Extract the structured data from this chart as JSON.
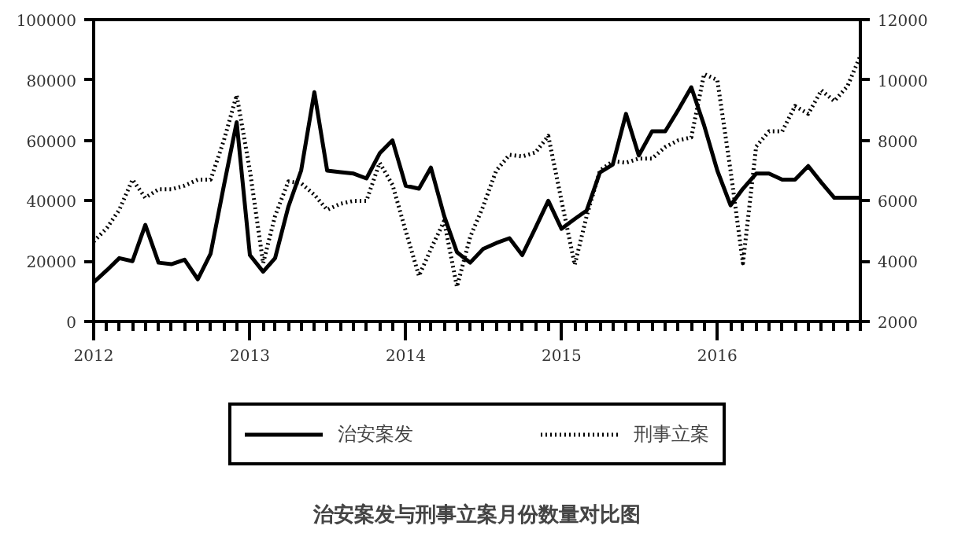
{
  "chart_data": {
    "type": "line",
    "title": "治安案发与刑事立案月份数量对比图",
    "x": [
      "2012-01",
      "2012-02",
      "2012-03",
      "2012-04",
      "2012-05",
      "2012-06",
      "2012-07",
      "2012-08",
      "2012-09",
      "2012-10",
      "2012-11",
      "2012-12",
      "2013-01",
      "2013-02",
      "2013-03",
      "2013-04",
      "2013-05",
      "2013-06",
      "2013-07",
      "2013-08",
      "2013-09",
      "2013-10",
      "2013-11",
      "2013-12",
      "2014-01",
      "2014-02",
      "2014-03",
      "2014-04",
      "2014-05",
      "2014-06",
      "2014-07",
      "2014-08",
      "2014-09",
      "2014-10",
      "2014-11",
      "2014-12",
      "2015-01",
      "2015-02",
      "2015-03",
      "2015-04",
      "2015-05",
      "2015-06",
      "2015-07",
      "2015-08",
      "2015-09",
      "2015-10",
      "2015-11",
      "2015-12",
      "2016-01",
      "2016-02",
      "2016-03",
      "2016-04",
      "2016-05",
      "2016-06",
      "2016-07",
      "2016-08",
      "2016-09",
      "2016-10",
      "2016-11",
      "2016-12"
    ],
    "series": [
      {
        "name": "治安案发",
        "color": "#000000",
        "line_style": "solid",
        "values": [
          13000,
          17000,
          21000,
          20000,
          32000,
          19500,
          19000,
          20500,
          14000,
          22500,
          45000,
          66000,
          22000,
          16500,
          21000,
          38000,
          50000,
          76000,
          50000,
          49500,
          49000,
          47400,
          55700,
          60000,
          45000,
          44000,
          51000,
          35000,
          23000,
          19500,
          24000,
          26000,
          27600,
          22000,
          31000,
          40000,
          30700,
          34000,
          36800,
          49400,
          52000,
          68800,
          55000,
          63000,
          63000,
          70000,
          77600,
          65000,
          50000,
          38500,
          44000,
          49000,
          49000,
          47000,
          47000,
          51500,
          46000,
          41000,
          41000,
          41000
        ]
      },
      {
        "name": "刑事立案",
        "color": "#000000",
        "line_style": "dotted",
        "axis": "y2",
        "values": [
          4650,
          5100,
          5700,
          6700,
          6100,
          6380,
          6380,
          6500,
          6700,
          6700,
          8000,
          9500,
          7000,
          3930,
          5500,
          6640,
          6580,
          6200,
          5700,
          5900,
          6000,
          6000,
          7260,
          6530,
          5000,
          3510,
          4400,
          5330,
          3150,
          4800,
          5800,
          7000,
          7520,
          7470,
          7600,
          8150,
          6000,
          3880,
          5500,
          7000,
          7310,
          7260,
          7400,
          7400,
          7780,
          8000,
          8100,
          10200,
          10000,
          7000,
          3930,
          7800,
          8300,
          8300,
          9140,
          8880,
          9660,
          9300,
          9800,
          10800
        ]
      }
    ],
    "xlim": [
      "2012-01",
      "2016-12"
    ],
    "xticks": [
      "2012",
      "2013",
      "2014",
      "2015",
      "2016"
    ],
    "ylim": [
      0,
      100000
    ],
    "yticks": [
      0,
      20000,
      40000,
      60000,
      80000,
      100000
    ],
    "y2lim": [
      2000,
      12000
    ],
    "y2ticks": [
      2000,
      4000,
      6000,
      8000,
      10000,
      12000
    ],
    "legend": "bottom"
  }
}
